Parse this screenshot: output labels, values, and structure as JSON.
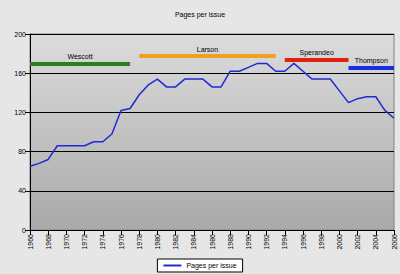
{
  "chart_data": {
    "type": "line",
    "title": "Pages per issue",
    "x": [
      1966,
      1967,
      1968,
      1969,
      1970,
      1971,
      1972,
      1973,
      1974,
      1975,
      1976,
      1977,
      1978,
      1979,
      1980,
      1981,
      1982,
      1983,
      1984,
      1985,
      1986,
      1987,
      1988,
      1989,
      1990,
      1991,
      1992,
      1993,
      1994,
      1995,
      1996,
      1997,
      1998,
      1999,
      2000,
      2001,
      2002,
      2003,
      2004,
      2005,
      2006
    ],
    "series": [
      {
        "name": "Pages per issue",
        "color": "#1f2bd0",
        "values": [
          65,
          68,
          72,
          86,
          86,
          86,
          86,
          90,
          90,
          98,
          122,
          124,
          138,
          148,
          154,
          146,
          146,
          154,
          154,
          154,
          146,
          146,
          162,
          162,
          166,
          170,
          170,
          162,
          162,
          170,
          162,
          154,
          154,
          154,
          142,
          130,
          134,
          136,
          136,
          122,
          114
        ]
      }
    ],
    "annotations": [
      {
        "text": "Wescott",
        "color": "#2e7d1e",
        "start": 1966,
        "end": 1977,
        "value": 170
      },
      {
        "text": "Larson",
        "color": "#f0a020",
        "start": 1978,
        "end": 1993,
        "value": 178
      },
      {
        "text": "Sperandeo",
        "color": "#e02010",
        "start": 1994,
        "end": 2001,
        "value": 174
      },
      {
        "text": "Thompson",
        "color": "#1a30e0",
        "start": 2001,
        "end": 2006,
        "value": 166
      }
    ],
    "xlim": [
      1966,
      2006
    ],
    "xticks": [
      1966,
      1968,
      1970,
      1972,
      1974,
      1976,
      1978,
      1980,
      1982,
      1984,
      1986,
      1988,
      1990,
      1992,
      1994,
      1996,
      1998,
      2000,
      2002,
      2004,
      2006
    ],
    "ylim": [
      0,
      200
    ],
    "yticks": [
      0,
      40,
      80,
      120,
      160,
      200
    ],
    "grid": true,
    "legend": "bottom"
  }
}
